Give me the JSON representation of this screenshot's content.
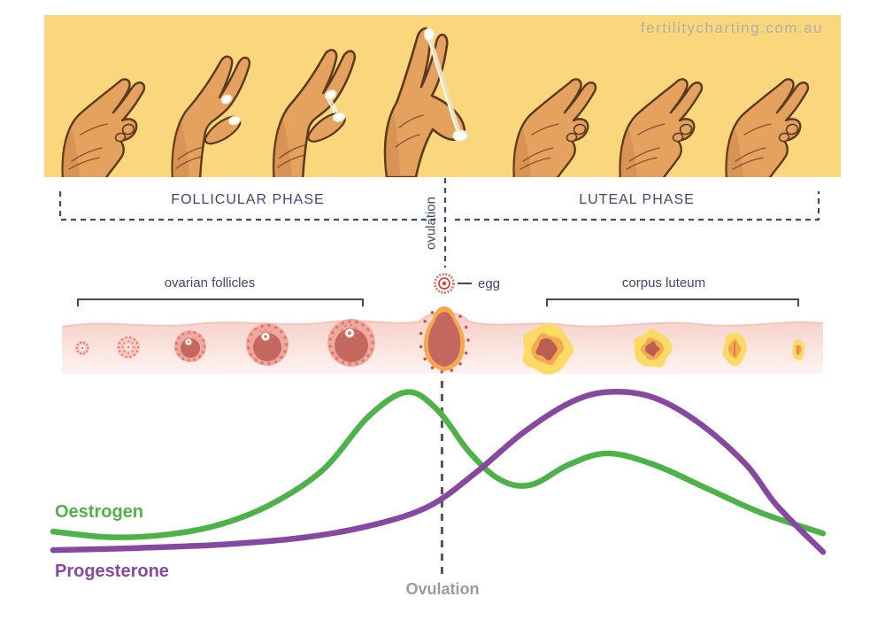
{
  "colors": {
    "banner-bg": "#FAD77C",
    "navy": "#3E4A68",
    "gray-label": "#9B9B9B",
    "watermark": "#B3AFA7",
    "dash-gray": "#545454",
    "band-pink": "#F6CCC4",
    "band-pink-light": "#FDF4F2",
    "band-edge": "#F2BEB5",
    "follicle-pale": "#F7C9C1",
    "follicle-base": "#F0A89E",
    "follicle-dot": "#D97B70",
    "follicle-dark": "#C4675E",
    "dot-red": "#D9473B",
    "corpus-yellow": "#FBDA66",
    "corpus-orange": "#F5A94F",
    "corpus-core": "#B95F52",
    "skin": "#E5A25E",
    "skin-shade": "#C47B43",
    "skin-outline": "#5C3A20",
    "mucus": "#EDE3C2"
  },
  "watermark": {
    "text": "fertilitycharting.com.au"
  },
  "banner": {
    "hands": [
      {
        "variant": "closed",
        "stage": "pinch-closed"
      },
      {
        "variant": "open-small",
        "stage": "small-stretch-creamy-mucus"
      },
      {
        "variant": "open-med",
        "stage": "medium-stretch-sticky-mucus"
      },
      {
        "variant": "stretch",
        "stage": "full-stretch-eggwhite-mucus"
      },
      {
        "variant": "closed",
        "stage": "pinch-closed"
      },
      {
        "variant": "closed",
        "stage": "pinch-closed"
      },
      {
        "variant": "closed",
        "stage": "pinch-closed"
      }
    ]
  },
  "phases": {
    "follicular": "FOLLICULAR PHASE",
    "ovulation_divider": "ovulation",
    "luteal": "LUTEAL PHASE"
  },
  "anatomy": {
    "follicles_label": "ovarian follicles",
    "egg_label": "egg",
    "corpus_label": "corpus luteum"
  },
  "chart_data": {
    "type": "line",
    "title": "",
    "x_unit": "menstrual cycle progression (follicular to luteal, normalized 0-1)",
    "y_unit": "relative hormone level (normalized 0-1)",
    "xlim": [
      0,
      1
    ],
    "ylim": [
      0,
      1
    ],
    "axes_visible": false,
    "grid": false,
    "legend": {
      "position": "curve-start-labels",
      "entries": [
        "Oestrogen",
        "Progesterone"
      ]
    },
    "series": [
      {
        "name": "Oestrogen",
        "color": "#4DB24A",
        "x": [
          0,
          0.07,
          0.14,
          0.21,
          0.28,
          0.35,
          0.41,
          0.46,
          0.5,
          0.54,
          0.58,
          0.62,
          0.67,
          0.72,
          0.78,
          0.85,
          0.92,
          1.0
        ],
        "y": [
          0.19,
          0.16,
          0.17,
          0.22,
          0.33,
          0.52,
          0.81,
          0.94,
          0.84,
          0.62,
          0.47,
          0.44,
          0.55,
          0.61,
          0.55,
          0.42,
          0.29,
          0.18
        ]
      },
      {
        "name": "Progesterone",
        "color": "#8648A0",
        "x": [
          0,
          0.1,
          0.22,
          0.33,
          0.42,
          0.49,
          0.55,
          0.61,
          0.67,
          0.72,
          0.78,
          0.84,
          0.9,
          0.94,
          1.0
        ],
        "y": [
          0.09,
          0.1,
          0.12,
          0.16,
          0.23,
          0.33,
          0.51,
          0.72,
          0.88,
          0.94,
          0.91,
          0.77,
          0.55,
          0.33,
          0.08
        ]
      }
    ],
    "annotations": [
      {
        "text": "Ovulation",
        "x": 0.505,
        "style": "vertical-dashed-line",
        "color": "#9B9B9B"
      }
    ]
  }
}
